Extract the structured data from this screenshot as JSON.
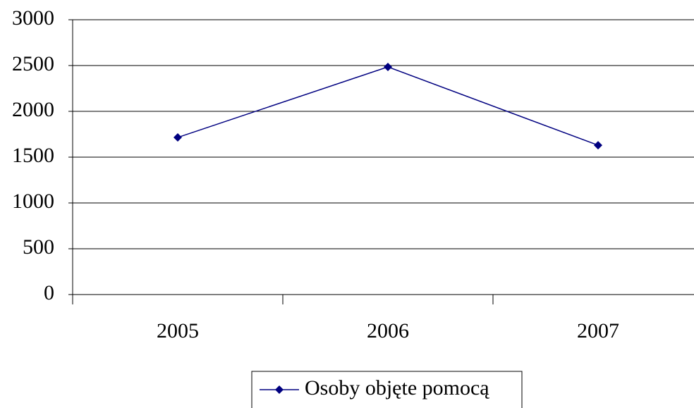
{
  "chart_data": {
    "type": "line",
    "categories": [
      "2005",
      "2006",
      "2007"
    ],
    "series": [
      {
        "name": "Osoby objęte pomocą",
        "color": "#000080",
        "values": [
          1715,
          2485,
          1630
        ]
      }
    ],
    "ylim": [
      0,
      3000
    ],
    "yticks": [
      0,
      500,
      1000,
      1500,
      2000,
      2500,
      3000
    ],
    "grid": true,
    "legend": "bottom"
  }
}
